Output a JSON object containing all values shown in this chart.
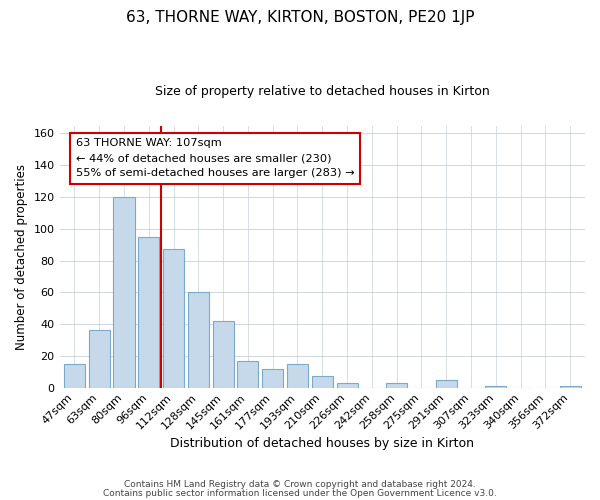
{
  "title": "63, THORNE WAY, KIRTON, BOSTON, PE20 1JP",
  "subtitle": "Size of property relative to detached houses in Kirton",
  "xlabel": "Distribution of detached houses by size in Kirton",
  "ylabel": "Number of detached properties",
  "footer_line1": "Contains HM Land Registry data © Crown copyright and database right 2024.",
  "footer_line2": "Contains public sector information licensed under the Open Government Licence v3.0.",
  "bar_labels": [
    "47sqm",
    "63sqm",
    "80sqm",
    "96sqm",
    "112sqm",
    "128sqm",
    "145sqm",
    "161sqm",
    "177sqm",
    "193sqm",
    "210sqm",
    "226sqm",
    "242sqm",
    "258sqm",
    "275sqm",
    "291sqm",
    "307sqm",
    "323sqm",
    "340sqm",
    "356sqm",
    "372sqm"
  ],
  "bar_values": [
    15,
    36,
    120,
    95,
    87,
    60,
    42,
    17,
    12,
    15,
    7,
    3,
    0,
    3,
    0,
    5,
    0,
    1,
    0,
    0,
    1
  ],
  "bar_color": "#c6d9ea",
  "bar_edge_color": "#7baac8",
  "vline_color": "#cc0000",
  "annotation_title": "63 THORNE WAY: 107sqm",
  "annotation_line1": "← 44% of detached houses are smaller (230)",
  "annotation_line2": "55% of semi-detached houses are larger (283) →",
  "annotation_box_edge": "#cc0000",
  "ylim": [
    0,
    165
  ],
  "yticks": [
    0,
    20,
    40,
    60,
    80,
    100,
    120,
    140,
    160
  ],
  "background_color": "#ffffff",
  "grid_color": "#c8d0da"
}
